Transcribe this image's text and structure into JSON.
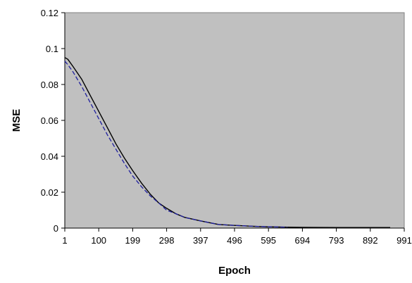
{
  "chart_data": {
    "type": "line",
    "title": "",
    "xlabel": "Epoch",
    "ylabel": "MSE",
    "ylim": [
      0,
      0.12
    ],
    "yticks": [
      "0",
      "0.02",
      "0.04",
      "0.06",
      "0.08",
      "0.1",
      "0.12"
    ],
    "xticks": [
      "1",
      "100",
      "199",
      "298",
      "397",
      "496",
      "595",
      "694",
      "793",
      "892",
      "991"
    ],
    "xlim": [
      1,
      991
    ],
    "grid": false,
    "legend": "none",
    "plot_background": "#c0c0c0",
    "series": [
      {
        "style": "solid",
        "color": "#000000",
        "x": [
          1,
          10,
          25,
          50,
          75,
          100,
          125,
          150,
          175,
          199,
          225,
          250,
          275,
          298,
          325,
          350,
          397,
          450,
          496,
          550,
          595,
          650,
          694,
          793,
          892,
          950
        ],
        "y": [
          0.095,
          0.094,
          0.09,
          0.083,
          0.074,
          0.065,
          0.056,
          0.047,
          0.039,
          0.032,
          0.025,
          0.019,
          0.014,
          0.011,
          0.008,
          0.006,
          0.004,
          0.002,
          0.0015,
          0.001,
          0.0007,
          0.0005,
          0.0004,
          0.0003,
          0.0003,
          0.0003
        ]
      },
      {
        "style": "dashed",
        "color": "#1f1f9e",
        "x": [
          1,
          10,
          25,
          50,
          75,
          100,
          125,
          150,
          175,
          199,
          225,
          250,
          275,
          298,
          325,
          350,
          397,
          450,
          496,
          550,
          595,
          650
        ],
        "y": [
          0.093,
          0.091,
          0.087,
          0.079,
          0.07,
          0.061,
          0.052,
          0.044,
          0.036,
          0.029,
          0.023,
          0.018,
          0.014,
          0.01,
          0.008,
          0.006,
          0.004,
          0.002,
          0.0015,
          0.001,
          0.0007,
          0.0005
        ]
      }
    ]
  }
}
